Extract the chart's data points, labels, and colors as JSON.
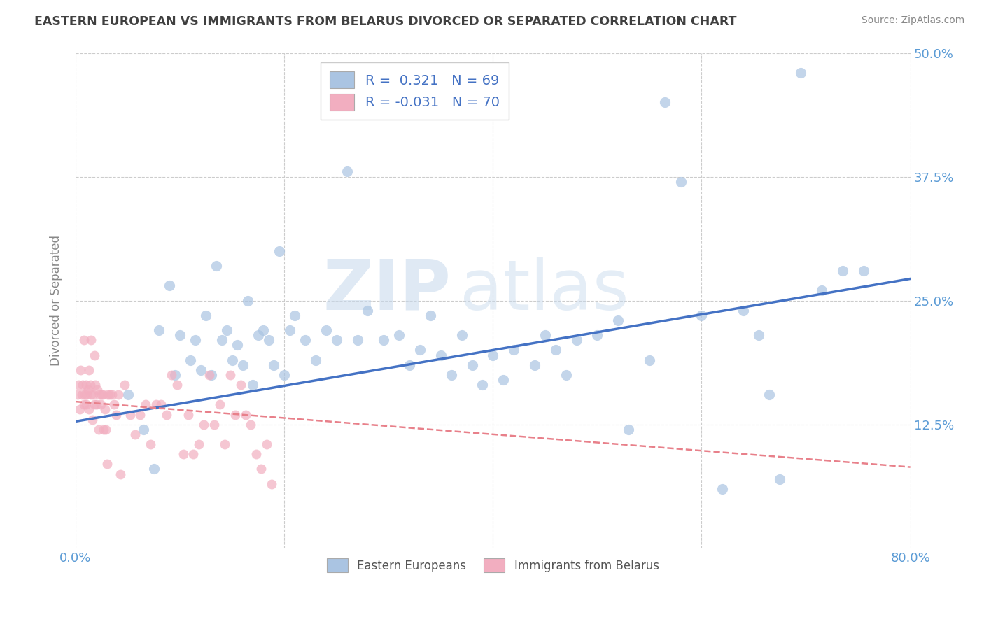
{
  "title": "EASTERN EUROPEAN VS IMMIGRANTS FROM BELARUS DIVORCED OR SEPARATED CORRELATION CHART",
  "source": "Source: ZipAtlas.com",
  "ylabel": "Divorced or Separated",
  "xlim": [
    0.0,
    0.8
  ],
  "ylim": [
    0.0,
    0.5
  ],
  "xticks": [
    0.0,
    0.2,
    0.4,
    0.6,
    0.8
  ],
  "xticklabels": [
    "0.0%",
    "",
    "",
    "",
    "80.0%"
  ],
  "yticks": [
    0.0,
    0.125,
    0.25,
    0.375,
    0.5
  ],
  "yticklabels": [
    "",
    "12.5%",
    "25.0%",
    "37.5%",
    "50.0%"
  ],
  "blue_R": 0.321,
  "blue_N": 69,
  "pink_R": -0.031,
  "pink_N": 70,
  "blue_color": "#aac4e2",
  "pink_color": "#f2aec0",
  "blue_line_color": "#4472c4",
  "pink_line_color": "#e8808a",
  "watermark_zip": "ZIP",
  "watermark_atlas": "atlas",
  "legend_label_blue": "Eastern Europeans",
  "legend_label_pink": "Immigrants from Belarus",
  "blue_scatter_x": [
    0.05,
    0.065,
    0.075,
    0.08,
    0.09,
    0.095,
    0.1,
    0.11,
    0.115,
    0.12,
    0.125,
    0.13,
    0.135,
    0.14,
    0.145,
    0.15,
    0.155,
    0.16,
    0.165,
    0.17,
    0.175,
    0.18,
    0.185,
    0.19,
    0.195,
    0.2,
    0.205,
    0.21,
    0.22,
    0.23,
    0.24,
    0.25,
    0.26,
    0.27,
    0.28,
    0.295,
    0.31,
    0.32,
    0.33,
    0.34,
    0.35,
    0.36,
    0.37,
    0.38,
    0.39,
    0.4,
    0.41,
    0.42,
    0.44,
    0.45,
    0.46,
    0.47,
    0.48,
    0.5,
    0.52,
    0.53,
    0.55,
    0.565,
    0.58,
    0.6,
    0.62,
    0.64,
    0.655,
    0.665,
    0.675,
    0.695,
    0.715,
    0.735,
    0.755
  ],
  "blue_scatter_y": [
    0.155,
    0.12,
    0.08,
    0.22,
    0.265,
    0.175,
    0.215,
    0.19,
    0.21,
    0.18,
    0.235,
    0.175,
    0.285,
    0.21,
    0.22,
    0.19,
    0.205,
    0.185,
    0.25,
    0.165,
    0.215,
    0.22,
    0.21,
    0.185,
    0.3,
    0.175,
    0.22,
    0.235,
    0.21,
    0.19,
    0.22,
    0.21,
    0.38,
    0.21,
    0.24,
    0.21,
    0.215,
    0.185,
    0.2,
    0.235,
    0.195,
    0.175,
    0.215,
    0.185,
    0.165,
    0.195,
    0.17,
    0.2,
    0.185,
    0.215,
    0.2,
    0.175,
    0.21,
    0.215,
    0.23,
    0.12,
    0.19,
    0.45,
    0.37,
    0.235,
    0.06,
    0.24,
    0.215,
    0.155,
    0.07,
    0.48,
    0.26,
    0.28,
    0.28
  ],
  "pink_scatter_x": [
    0.002,
    0.003,
    0.004,
    0.005,
    0.006,
    0.007,
    0.008,
    0.008,
    0.009,
    0.01,
    0.01,
    0.011,
    0.012,
    0.013,
    0.013,
    0.014,
    0.015,
    0.015,
    0.016,
    0.017,
    0.018,
    0.018,
    0.019,
    0.02,
    0.021,
    0.022,
    0.023,
    0.024,
    0.025,
    0.026,
    0.027,
    0.028,
    0.029,
    0.03,
    0.031,
    0.033,
    0.035,
    0.037,
    0.039,
    0.041,
    0.043,
    0.047,
    0.052,
    0.057,
    0.062,
    0.067,
    0.072,
    0.077,
    0.082,
    0.087,
    0.092,
    0.097,
    0.103,
    0.108,
    0.113,
    0.118,
    0.123,
    0.128,
    0.133,
    0.138,
    0.143,
    0.148,
    0.153,
    0.158,
    0.163,
    0.168,
    0.173,
    0.178,
    0.183,
    0.188
  ],
  "pink_scatter_y": [
    0.155,
    0.165,
    0.14,
    0.18,
    0.155,
    0.165,
    0.145,
    0.21,
    0.155,
    0.165,
    0.145,
    0.155,
    0.16,
    0.14,
    0.18,
    0.165,
    0.155,
    0.21,
    0.13,
    0.155,
    0.145,
    0.195,
    0.165,
    0.145,
    0.16,
    0.12,
    0.155,
    0.145,
    0.155,
    0.155,
    0.12,
    0.14,
    0.12,
    0.085,
    0.155,
    0.155,
    0.155,
    0.145,
    0.135,
    0.155,
    0.075,
    0.165,
    0.135,
    0.115,
    0.135,
    0.145,
    0.105,
    0.145,
    0.145,
    0.135,
    0.175,
    0.165,
    0.095,
    0.135,
    0.095,
    0.105,
    0.125,
    0.175,
    0.125,
    0.145,
    0.105,
    0.175,
    0.135,
    0.165,
    0.135,
    0.125,
    0.095,
    0.08,
    0.105,
    0.065
  ],
  "blue_line_x": [
    0.0,
    0.8
  ],
  "blue_line_y_start": 0.128,
  "blue_line_y_end": 0.272,
  "pink_line_x": [
    0.0,
    0.8
  ],
  "pink_line_y_start": 0.148,
  "pink_line_y_end": 0.082,
  "background_color": "#ffffff",
  "grid_color": "#cccccc",
  "title_color": "#404040",
  "tick_color": "#5b9bd5",
  "axis_label_color": "#888888"
}
